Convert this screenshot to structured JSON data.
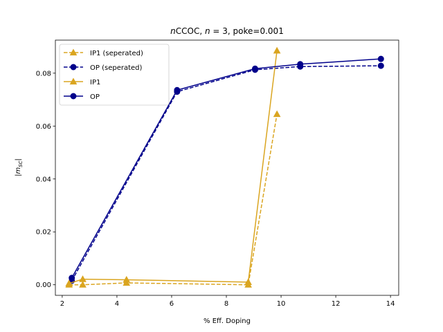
{
  "chart_data": {
    "type": "line",
    "title_parts": {
      "italic_prefix": "n",
      "plain_1": "CCOC, ",
      "italic_mid": "n",
      "plain_2": " = 3, poke=0.001"
    },
    "xlabel": "% Eff. Doping",
    "ylabel_parts": {
      "main": "|m",
      "sub": "SC",
      "end": "|"
    },
    "xlim": [
      1.75,
      14.3
    ],
    "ylim": [
      -0.004,
      0.0925
    ],
    "xticks": [
      2,
      4,
      6,
      8,
      10,
      12,
      14
    ],
    "xtick_labels": [
      "2",
      "4",
      "6",
      "8",
      "10",
      "12",
      "14"
    ],
    "yticks": [
      0.0,
      0.02,
      0.04,
      0.06,
      0.08
    ],
    "ytick_labels": [
      "0.00",
      "0.02",
      "0.04",
      "0.06",
      "0.08"
    ],
    "grid": false,
    "legend_position": "top-left",
    "series": [
      {
        "name": "IP1 (seperated)",
        "color": "#DAA520",
        "linestyle": "dashed",
        "marker": "triangle",
        "x": [
          2.25,
          2.75,
          4.35,
          8.8,
          9.85
        ],
        "y": [
          0.0,
          0.0,
          0.0007,
          0.0,
          0.0645
        ]
      },
      {
        "name": "OP (seperated)",
        "color": "#00008B",
        "linestyle": "dashed",
        "marker": "circle",
        "x": [
          2.35,
          6.2,
          9.05,
          10.7,
          13.65
        ],
        "y": [
          0.0015,
          0.073,
          0.0813,
          0.0825,
          0.0828
        ]
      },
      {
        "name": "IP1",
        "color": "#DAA520",
        "linestyle": "solid",
        "marker": "triangle",
        "x": [
          2.25,
          2.75,
          4.35,
          8.8,
          9.85
        ],
        "y": [
          0.0005,
          0.0021,
          0.0019,
          0.001,
          0.0885
        ]
      },
      {
        "name": "OP",
        "color": "#00008B",
        "linestyle": "solid",
        "marker": "circle",
        "x": [
          2.35,
          6.2,
          9.05,
          10.7,
          13.65
        ],
        "y": [
          0.0026,
          0.0736,
          0.0817,
          0.0834,
          0.0854
        ]
      }
    ]
  }
}
